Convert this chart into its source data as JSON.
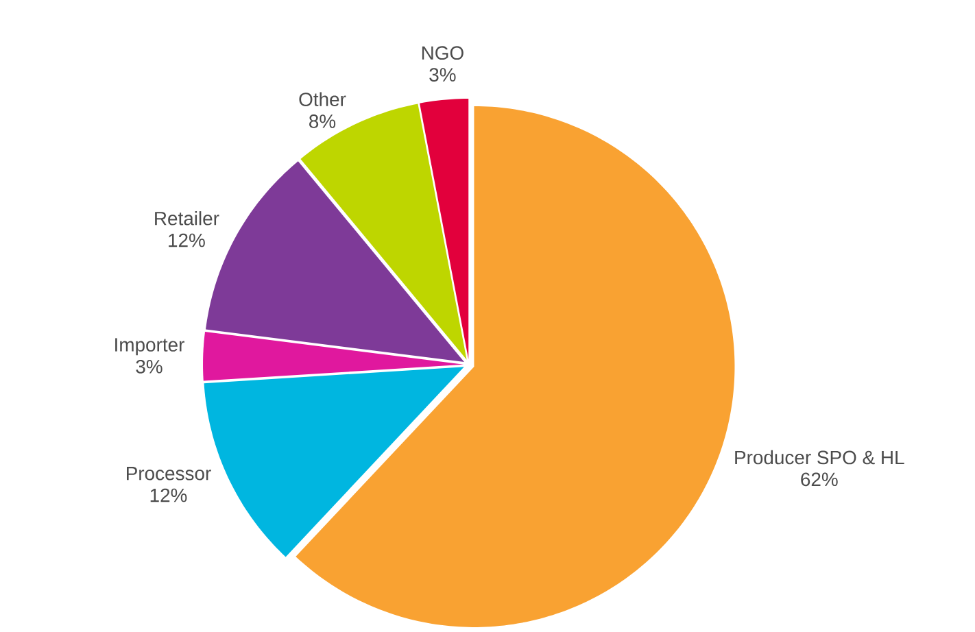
{
  "chart_data": {
    "type": "pie",
    "categories": [
      "Producer SPO & HL",
      "Processor",
      "Importer",
      "Retailer",
      "Other",
      "NGO"
    ],
    "values": [
      62,
      12,
      3,
      12,
      8,
      3
    ],
    "value_labels": [
      "62%",
      "12%",
      "3%",
      "12%",
      "8%",
      "3%"
    ],
    "colors": [
      "#f9a232",
      "#00b6e0",
      "#e0189e",
      "#7e3a98",
      "#bed600",
      "#e2003c"
    ]
  }
}
